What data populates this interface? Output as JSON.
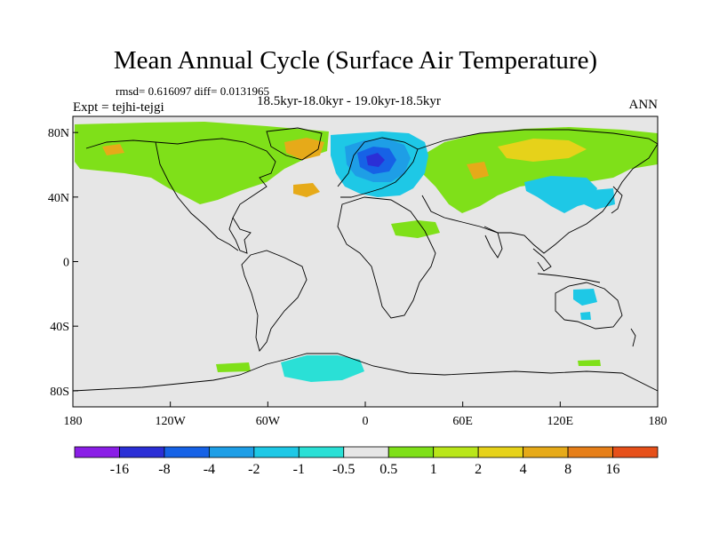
{
  "title": "Mean Annual Cycle (Surface Air Temperature)",
  "stats": "rmsd= 0.616097 diff= 0.0131965",
  "experiment": "Expt = tejhi-tejgi",
  "period": "18.5kyr-18.0kyr - 19.0kyr-18.5kyr",
  "season": "ANN",
  "lat_ticks": [
    {
      "label": "80N",
      "lat": 80
    },
    {
      "label": "40N",
      "lat": 40
    },
    {
      "label": "0",
      "lat": 0
    },
    {
      "label": "40S",
      "lat": -40
    },
    {
      "label": "80S",
      "lat": -80
    }
  ],
  "lon_ticks": [
    {
      "label": "180",
      "lon": -180
    },
    {
      "label": "120W",
      "lon": -120
    },
    {
      "label": "60W",
      "lon": -60
    },
    {
      "label": "0",
      "lon": 0
    },
    {
      "label": "60E",
      "lon": 60
    },
    {
      "label": "120E",
      "lon": 120
    },
    {
      "label": "180",
      "lon": 180
    }
  ],
  "colorbar": {
    "colors": [
      "#8a1ee6",
      "#2b2fd6",
      "#1662e6",
      "#1e9ee6",
      "#1ec8e6",
      "#2ae0d6",
      "#e6e6e6",
      "#7fe019",
      "#b9e61a",
      "#e6d21a",
      "#e6aa19",
      "#e67f19",
      "#e6501a"
    ],
    "labels": [
      "-16",
      "-8",
      "-4",
      "-2",
      "-1",
      "-0.5",
      "0.5",
      "1",
      "2",
      "4",
      "8",
      "16"
    ]
  },
  "colors": {
    "ocean": "#e6e6e6",
    "coast": "#000000"
  }
}
